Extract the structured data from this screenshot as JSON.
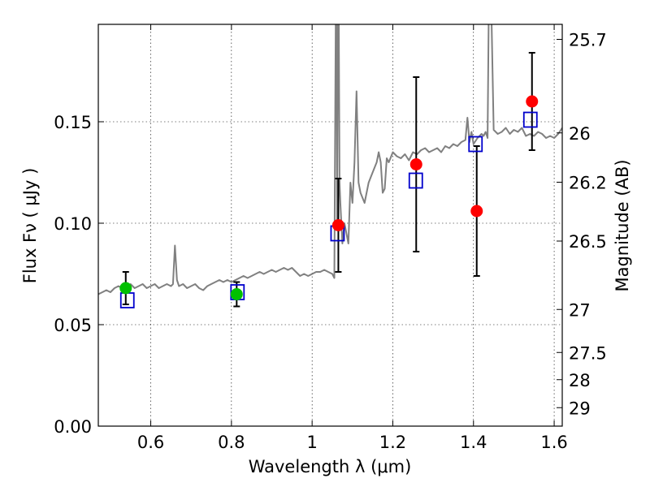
{
  "chart_data": {
    "type": "scatter",
    "title": "",
    "xlabel": "Wavelength  λ (μm)",
    "ylabel": "Flux  Fν  ( μJy )",
    "ylabel_right": "Magnitude (AB)",
    "xlim": [
      0.47,
      1.62
    ],
    "ylim": [
      0.0,
      0.198
    ],
    "x_ticks": [
      0.6,
      0.8,
      1.0,
      1.2,
      1.4,
      1.6
    ],
    "x_tick_labels": [
      "0.6",
      "0.8",
      "1",
      "1.2",
      "1.4",
      "1.6"
    ],
    "y_ticks": [
      0.0,
      0.05,
      0.1,
      0.15
    ],
    "y_tick_labels": [
      "0.00",
      "0.05",
      "0.10",
      "0.15"
    ],
    "right_ticks": [
      {
        "label": "25.7",
        "flux": 0.1906
      },
      {
        "label": "26",
        "flux": 0.1445
      },
      {
        "label": "26.2",
        "flux": 0.1202
      },
      {
        "label": "26.5",
        "flux": 0.0912
      },
      {
        "label": "27",
        "flux": 0.0575
      },
      {
        "label": "27.5",
        "flux": 0.0363
      },
      {
        "label": "28",
        "flux": 0.0229
      },
      {
        "label": "29",
        "flux": 0.0091
      }
    ],
    "grid": true,
    "colors": {
      "spectrum": "#808080",
      "observed_red": "#ff0000",
      "observed_green": "#00c000",
      "model": "#0000cc",
      "errorbar": "#000000"
    },
    "series": [
      {
        "name": "model spectrum",
        "style": "line",
        "x": [
          0.47,
          0.48,
          0.49,
          0.5,
          0.51,
          0.52,
          0.53,
          0.54,
          0.55,
          0.56,
          0.57,
          0.58,
          0.59,
          0.6,
          0.61,
          0.62,
          0.63,
          0.64,
          0.65,
          0.655,
          0.66,
          0.665,
          0.67,
          0.68,
          0.69,
          0.7,
          0.71,
          0.72,
          0.73,
          0.74,
          0.75,
          0.76,
          0.77,
          0.78,
          0.79,
          0.8,
          0.81,
          0.82,
          0.83,
          0.84,
          0.85,
          0.86,
          0.87,
          0.88,
          0.89,
          0.9,
          0.91,
          0.92,
          0.93,
          0.94,
          0.95,
          0.96,
          0.97,
          0.98,
          0.99,
          1.0,
          1.01,
          1.02,
          1.03,
          1.04,
          1.05,
          1.055,
          1.06,
          1.062,
          1.065,
          1.068,
          1.07,
          1.075,
          1.08,
          1.09,
          1.095,
          1.1,
          1.105,
          1.11,
          1.115,
          1.12,
          1.13,
          1.14,
          1.15,
          1.16,
          1.165,
          1.17,
          1.175,
          1.18,
          1.185,
          1.19,
          1.2,
          1.21,
          1.22,
          1.23,
          1.24,
          1.25,
          1.26,
          1.27,
          1.28,
          1.29,
          1.3,
          1.31,
          1.32,
          1.33,
          1.34,
          1.35,
          1.36,
          1.37,
          1.38,
          1.385,
          1.39,
          1.395,
          1.4,
          1.41,
          1.42,
          1.425,
          1.43,
          1.435,
          1.44,
          1.45,
          1.46,
          1.47,
          1.48,
          1.49,
          1.5,
          1.51,
          1.52,
          1.53,
          1.54,
          1.55,
          1.56,
          1.57,
          1.58,
          1.59,
          1.6,
          1.61,
          1.62
        ],
        "y": [
          0.065,
          0.066,
          0.067,
          0.066,
          0.068,
          0.069,
          0.068,
          0.069,
          0.07,
          0.068,
          0.069,
          0.07,
          0.068,
          0.069,
          0.07,
          0.068,
          0.069,
          0.07,
          0.069,
          0.07,
          0.089,
          0.072,
          0.069,
          0.07,
          0.068,
          0.069,
          0.07,
          0.068,
          0.067,
          0.069,
          0.07,
          0.071,
          0.072,
          0.071,
          0.072,
          0.071,
          0.072,
          0.073,
          0.074,
          0.073,
          0.074,
          0.075,
          0.076,
          0.075,
          0.076,
          0.077,
          0.076,
          0.077,
          0.078,
          0.077,
          0.078,
          0.076,
          0.074,
          0.075,
          0.074,
          0.075,
          0.076,
          0.076,
          0.077,
          0.076,
          0.075,
          0.073,
          0.25,
          0.1,
          0.25,
          0.12,
          0.11,
          0.09,
          0.1,
          0.09,
          0.12,
          0.11,
          0.13,
          0.165,
          0.12,
          0.115,
          0.11,
          0.12,
          0.125,
          0.13,
          0.135,
          0.13,
          0.115,
          0.117,
          0.132,
          0.13,
          0.135,
          0.133,
          0.132,
          0.134,
          0.131,
          0.135,
          0.134,
          0.136,
          0.137,
          0.135,
          0.136,
          0.137,
          0.135,
          0.138,
          0.137,
          0.139,
          0.138,
          0.14,
          0.141,
          0.152,
          0.14,
          0.145,
          0.139,
          0.142,
          0.144,
          0.143,
          0.145,
          0.142,
          0.25,
          0.146,
          0.144,
          0.145,
          0.147,
          0.144,
          0.146,
          0.145,
          0.147,
          0.143,
          0.144,
          0.143,
          0.145,
          0.144,
          0.142,
          0.143,
          0.142,
          0.144,
          0.147
        ]
      },
      {
        "name": "observed (red)",
        "style": "circle",
        "x": [
          1.065,
          1.258,
          1.408,
          1.545
        ],
        "y": [
          0.099,
          0.129,
          0.106,
          0.16
        ],
        "err": [
          0.023,
          0.043,
          0.032,
          0.024
        ]
      },
      {
        "name": "observed (green)",
        "style": "circle",
        "x": [
          0.538,
          0.813
        ],
        "y": [
          0.068,
          0.065
        ],
        "err": [
          0.008,
          0.006
        ]
      },
      {
        "name": "model photometry",
        "style": "square",
        "x": [
          0.542,
          0.815,
          1.063,
          1.257,
          1.405,
          1.541
        ],
        "y": [
          0.062,
          0.066,
          0.095,
          0.121,
          0.139,
          0.151
        ]
      }
    ]
  }
}
